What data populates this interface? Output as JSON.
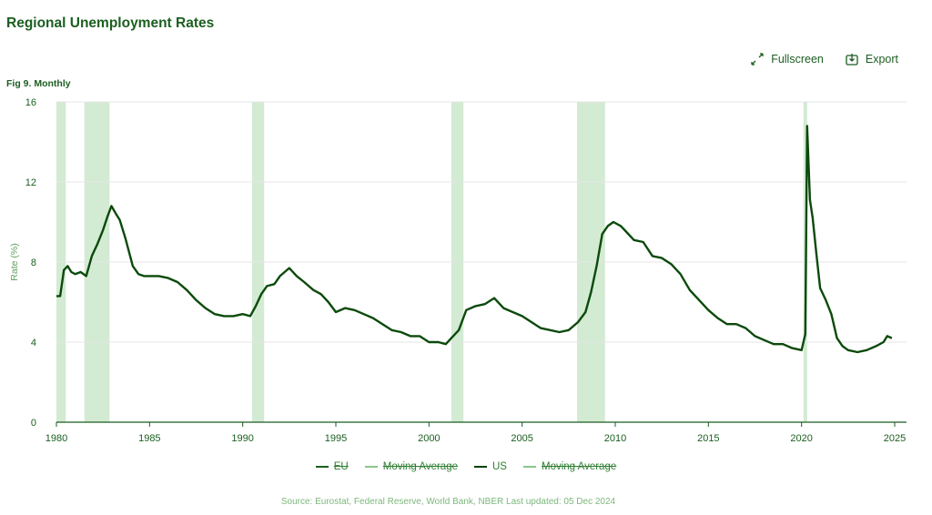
{
  "header": {
    "title": "Regional Unemployment Rates",
    "fullscreen_label": "Fullscreen",
    "export_label": "Export",
    "subtitle": "Fig 9. Monthly"
  },
  "footer": {
    "source": "Source: Eurostat, Federal Reserve, World Bank, NBER Last updated: 05 Dec 2024"
  },
  "legend": [
    {
      "label": "EU",
      "color": "#1b5e20",
      "struck": true
    },
    {
      "label": "Moving Average",
      "color": "#8bc48b",
      "struck": true
    },
    {
      "label": "US",
      "color": "#0b3d0b",
      "struck": false
    },
    {
      "label": "Moving Average",
      "color": "#8bc48b",
      "struck": true
    }
  ],
  "colors": {
    "line": "#0b4a0b",
    "recession": "#d3ead3",
    "grid": "#e6e6e6",
    "axis": "#1b5e20"
  },
  "chart_data": {
    "type": "line",
    "ylabel": "Rate (%)",
    "xlim": [
      1980,
      2025.3
    ],
    "ylim": [
      0,
      16
    ],
    "yticks": [
      0,
      4,
      8,
      12,
      16
    ],
    "xticks": [
      1980,
      1985,
      1990,
      1995,
      2000,
      2005,
      2010,
      2015,
      2020,
      2025
    ],
    "grid": true,
    "legend_position": "bottom",
    "recessions": [
      [
        1980.0,
        1980.5
      ],
      [
        1981.5,
        1982.85
      ],
      [
        1990.5,
        1991.15
      ],
      [
        2001.2,
        2001.85
      ],
      [
        2007.95,
        2009.45
      ],
      [
        2020.1,
        2020.3
      ]
    ],
    "series": [
      {
        "name": "US",
        "points": [
          [
            1980.0,
            6.3
          ],
          [
            1980.2,
            6.3
          ],
          [
            1980.4,
            7.6
          ],
          [
            1980.6,
            7.8
          ],
          [
            1980.8,
            7.5
          ],
          [
            1981.0,
            7.4
          ],
          [
            1981.3,
            7.5
          ],
          [
            1981.6,
            7.3
          ],
          [
            1981.9,
            8.3
          ],
          [
            1982.2,
            8.9
          ],
          [
            1982.5,
            9.6
          ],
          [
            1982.75,
            10.3
          ],
          [
            1982.95,
            10.8
          ],
          [
            1983.2,
            10.4
          ],
          [
            1983.4,
            10.1
          ],
          [
            1983.7,
            9.2
          ],
          [
            1983.9,
            8.5
          ],
          [
            1984.1,
            7.8
          ],
          [
            1984.4,
            7.4
          ],
          [
            1984.7,
            7.3
          ],
          [
            1985.0,
            7.3
          ],
          [
            1985.5,
            7.3
          ],
          [
            1986.0,
            7.2
          ],
          [
            1986.5,
            7.0
          ],
          [
            1987.0,
            6.6
          ],
          [
            1987.5,
            6.1
          ],
          [
            1988.0,
            5.7
          ],
          [
            1988.5,
            5.4
          ],
          [
            1989.0,
            5.3
          ],
          [
            1989.5,
            5.3
          ],
          [
            1990.0,
            5.4
          ],
          [
            1990.4,
            5.3
          ],
          [
            1990.7,
            5.8
          ],
          [
            1991.0,
            6.4
          ],
          [
            1991.3,
            6.8
          ],
          [
            1991.7,
            6.9
          ],
          [
            1992.0,
            7.3
          ],
          [
            1992.5,
            7.7
          ],
          [
            1992.9,
            7.3
          ],
          [
            1993.3,
            7.0
          ],
          [
            1993.8,
            6.6
          ],
          [
            1994.2,
            6.4
          ],
          [
            1994.6,
            6.0
          ],
          [
            1995.0,
            5.5
          ],
          [
            1995.5,
            5.7
          ],
          [
            1996.0,
            5.6
          ],
          [
            1996.5,
            5.4
          ],
          [
            1997.0,
            5.2
          ],
          [
            1997.5,
            4.9
          ],
          [
            1998.0,
            4.6
          ],
          [
            1998.5,
            4.5
          ],
          [
            1999.0,
            4.3
          ],
          [
            1999.5,
            4.3
          ],
          [
            2000.0,
            4.0
          ],
          [
            2000.5,
            4.0
          ],
          [
            2000.9,
            3.9
          ],
          [
            2001.2,
            4.2
          ],
          [
            2001.6,
            4.6
          ],
          [
            2002.0,
            5.6
          ],
          [
            2002.5,
            5.8
          ],
          [
            2003.0,
            5.9
          ],
          [
            2003.5,
            6.2
          ],
          [
            2004.0,
            5.7
          ],
          [
            2004.5,
            5.5
          ],
          [
            2005.0,
            5.3
          ],
          [
            2005.5,
            5.0
          ],
          [
            2006.0,
            4.7
          ],
          [
            2006.5,
            4.6
          ],
          [
            2007.0,
            4.5
          ],
          [
            2007.5,
            4.6
          ],
          [
            2008.0,
            5.0
          ],
          [
            2008.4,
            5.5
          ],
          [
            2008.7,
            6.5
          ],
          [
            2009.0,
            7.8
          ],
          [
            2009.3,
            9.4
          ],
          [
            2009.6,
            9.8
          ],
          [
            2009.9,
            10.0
          ],
          [
            2010.3,
            9.8
          ],
          [
            2010.6,
            9.5
          ],
          [
            2011.0,
            9.1
          ],
          [
            2011.5,
            9.0
          ],
          [
            2012.0,
            8.3
          ],
          [
            2012.5,
            8.2
          ],
          [
            2013.0,
            7.9
          ],
          [
            2013.5,
            7.4
          ],
          [
            2014.0,
            6.6
          ],
          [
            2014.5,
            6.1
          ],
          [
            2015.0,
            5.6
          ],
          [
            2015.5,
            5.2
          ],
          [
            2016.0,
            4.9
          ],
          [
            2016.5,
            4.9
          ],
          [
            2017.0,
            4.7
          ],
          [
            2017.5,
            4.3
          ],
          [
            2018.0,
            4.1
          ],
          [
            2018.5,
            3.9
          ],
          [
            2019.0,
            3.9
          ],
          [
            2019.5,
            3.7
          ],
          [
            2020.0,
            3.6
          ],
          [
            2020.2,
            4.4
          ],
          [
            2020.3,
            14.8
          ],
          [
            2020.45,
            11.1
          ],
          [
            2020.6,
            10.2
          ],
          [
            2020.8,
            8.4
          ],
          [
            2021.0,
            6.7
          ],
          [
            2021.3,
            6.1
          ],
          [
            2021.6,
            5.4
          ],
          [
            2021.9,
            4.2
          ],
          [
            2022.2,
            3.8
          ],
          [
            2022.5,
            3.6
          ],
          [
            2023.0,
            3.5
          ],
          [
            2023.5,
            3.6
          ],
          [
            2024.0,
            3.8
          ],
          [
            2024.4,
            4.0
          ],
          [
            2024.6,
            4.3
          ],
          [
            2024.85,
            4.2
          ]
        ]
      }
    ]
  }
}
